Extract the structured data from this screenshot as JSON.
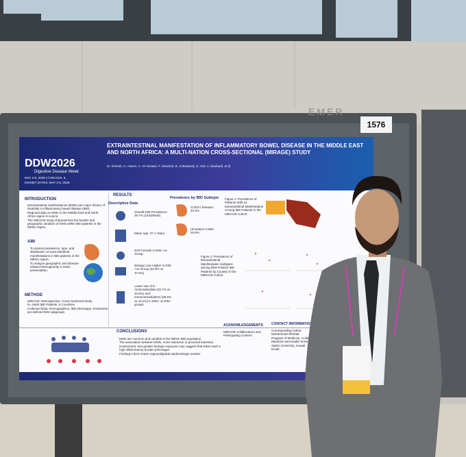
{
  "background": {
    "sign": "EMER",
    "booth_number": "1576"
  },
  "poster": {
    "logo": {
      "name": "DDW2026",
      "tagline": "Digestive Disease Week",
      "dates": "MAY 2-5, 2026 | CHICAGO, IL",
      "exhibit_dates": "EXHIBIT DATES: MAY 3-5, 2026"
    },
    "title": "EXTRAINTESTINAL MANIFESTATION OF INFLAMMATORY BOWEL DISEASE IN THE MIDDLE EAST AND NORTH AFRICA: A MULTI-NATION CROSS-SECTIONAL (MIRAGE) STUDY",
    "authors": "M. Shehab, H. Assem, A. Al-Hindawi, F. Alrashed, B. Al-Bawardy, S. Alrd, A. Bashardi, et al",
    "introduction": {
      "heading": "INTRODUCTION",
      "items": [
        "Extraintestinal manifestations (EIMs) are major drivers of disability in inflammatory bowel disease (IBD).",
        "Regional data on EIMs in the Middle East and North Africa region is scarce.",
        "The MIRAGE study characterizes the burden and geographic variation of EIMs within IBD patients in the MENA region."
      ]
    },
    "aim": {
      "heading": "AIM",
      "items": [
        "To assess prevalence, type, and distribution of extra-intestinal manifestations in IBD patients in the MENA region.",
        "To analyze geographic and disease-related heterogeneity in EIMs presentation."
      ]
    },
    "method": {
      "heading": "METHOD",
      "items": [
        "MIRAGE: Retrospective, Cross Sectional Study",
        "N= 5540 IBD Patients, 6 Countries",
        "Collected Data: Demographics, IBD phenotype, treatments, pre-defined EIM subgroups"
      ]
    },
    "results": {
      "heading": "RESULTS",
      "descriptive_heading": "Descriptive Data",
      "subtype_heading": "Prevalence by IBD Subtype",
      "overall": "Overall EIM Prevalence: 29.7% (1643/5540)",
      "mean_age": "Mean Age: 37.1 Years",
      "female": "52% Female in EIM +ve Group",
      "biologic": "Biologic Use Higher in EIM +ve Group (42.6% vs 37.5%)",
      "lower_use": "Lower use of 5-Aminosalicylate (32.7% vs 43.9%) and Immunomodulators (36.5% vs 42.2%) in EIM+ vs EIM- groups",
      "crohns": "Crohn's Disease: 33.3%",
      "uc": "Ulcerative Colitis: 26.8%",
      "figure1": "Figure 1: Prevalence of Patients With ≥1 Extraintestinal Manifestation Among IBD Patients in the MIRAGE Cohort",
      "figure2": "Figure 2: Prevalence of Extraintestinal Manifestation Subtypes among EIM-Positive IBD Patients by Country in the MIRAGE Cohort"
    },
    "conclusions": {
      "heading": "CONCLUSIONS",
      "items": [
        "EIMs are common and variable in the MENA IBD population",
        "The association between EIMs, more extensive or proximal intestinal involvement, and greater biologic exposure may suggest that EIMs mark a high inflammatory burden phenotype.",
        "Findings inform future regional/global epidemiologic studies"
      ]
    },
    "acknowledgements": {
      "heading": "ACKNOWLEDGEMENTS",
      "text": "MIRAGE Collaborators and Participating Centres"
    },
    "contact": {
      "heading": "CONTACT INFORMATION",
      "items": [
        "Corresponding Author: Mohammad Shehab",
        "Program of Medicine, College of Medicine and Health Sciences, Al Salem University, Kuwait",
        "Email:"
      ]
    }
  }
}
